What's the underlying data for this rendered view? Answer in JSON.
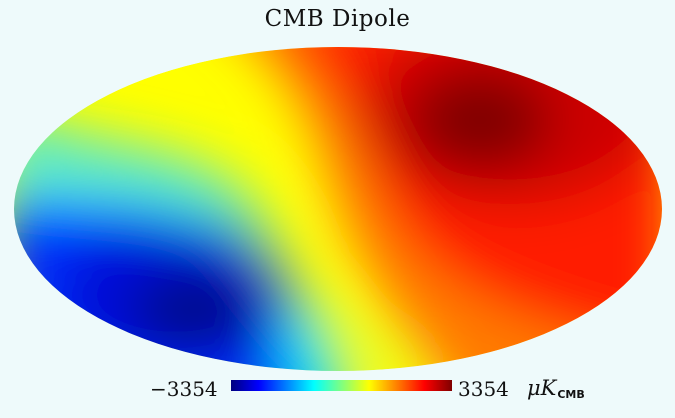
{
  "map": {
    "title": "CMB Dipole",
    "projection": "mollweide",
    "colormap": "jet"
  },
  "colorbar": {
    "min_label": "−3354",
    "max_label": "3354",
    "unit_symbol": "μK",
    "unit_subscript": "CMB",
    "colors": [
      "#00007f",
      "#0000ff",
      "#00ffff",
      "#ffff00",
      "#ff0000",
      "#7f0000"
    ]
  }
}
